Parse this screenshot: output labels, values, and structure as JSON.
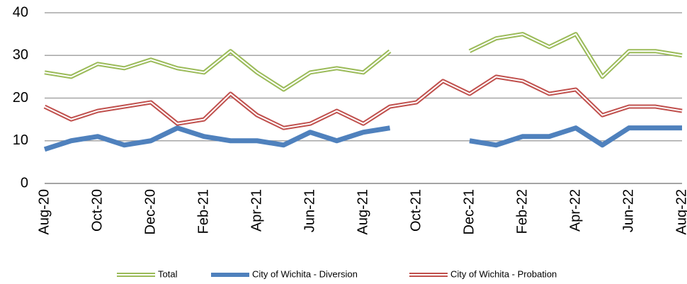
{
  "chart_data": {
    "type": "line",
    "categories": [
      "Aug-20",
      null,
      "Oct-20",
      null,
      "Dec-20",
      null,
      "Feb-21",
      null,
      "Apr-21",
      null,
      "Jun-21",
      null,
      "Aug-21",
      null,
      "Oct-21",
      null,
      "Dec-21",
      null,
      "Feb-22",
      null,
      "Apr-22",
      null,
      "Jun-22",
      null,
      "Aug-22"
    ],
    "series": [
      {
        "name": "Total",
        "color": "#9bbb59",
        "style": "double",
        "values": [
          26,
          25,
          28,
          27,
          29,
          27,
          26,
          31,
          26,
          22,
          26,
          27,
          26,
          31,
          null,
          null,
          31,
          34,
          35,
          32,
          35,
          25,
          31,
          31,
          30
        ]
      },
      {
        "name": "City of Wichita - Diversion",
        "color": "#4f81bd",
        "style": "solid",
        "values": [
          8,
          10,
          11,
          9,
          10,
          13,
          11,
          10,
          10,
          9,
          12,
          10,
          12,
          13,
          null,
          null,
          10,
          9,
          11,
          11,
          13,
          9,
          13,
          13,
          13
        ]
      },
      {
        "name": "City of Wichita - Probation",
        "color": "#c0504d",
        "style": "double",
        "values": [
          18,
          15,
          17,
          18,
          19,
          14,
          15,
          21,
          16,
          13,
          14,
          17,
          14,
          18,
          19,
          24,
          21,
          25,
          24,
          21,
          22,
          16,
          18,
          18,
          17
        ]
      }
    ],
    "ylim": [
      0,
      40
    ],
    "yticks": [
      0,
      10,
      20,
      30,
      40
    ],
    "grid": true,
    "legend": "bottom"
  }
}
